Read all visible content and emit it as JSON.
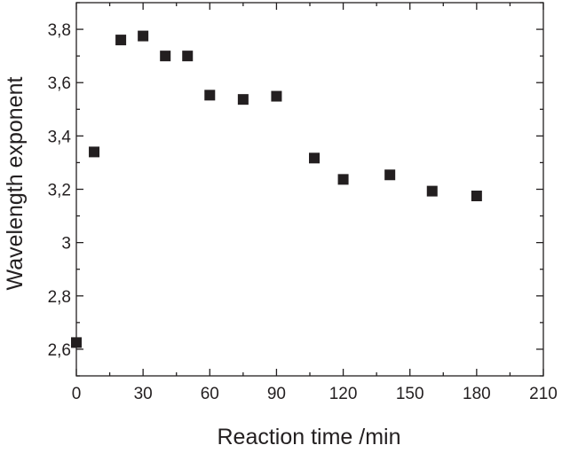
{
  "chart_data": {
    "type": "scatter",
    "title": "",
    "xlabel": "Reaction time /min",
    "ylabel": "Wavelength exponent",
    "xlim": [
      0,
      210
    ],
    "ylim": [
      2.5,
      3.9
    ],
    "x_ticks": [
      0,
      30,
      60,
      90,
      120,
      150,
      180,
      210
    ],
    "y_ticks": [
      2.6,
      2.8,
      3.0,
      3.2,
      3.4,
      3.6,
      3.8
    ],
    "y_tick_labels": [
      "2,6",
      "2,8",
      "3",
      "3,2",
      "3,4",
      "3,6",
      "3,8"
    ],
    "grid": false,
    "marker": "filled-square",
    "marker_color": "#231f20",
    "series": [
      {
        "x": [
          0,
          8,
          20,
          30,
          40,
          50,
          60,
          75,
          90,
          107,
          120,
          141,
          160,
          180
        ],
        "y": [
          2.625,
          3.34,
          3.76,
          3.775,
          3.7,
          3.7,
          3.553,
          3.537,
          3.549,
          3.317,
          3.237,
          3.254,
          3.193,
          3.175
        ]
      }
    ]
  }
}
